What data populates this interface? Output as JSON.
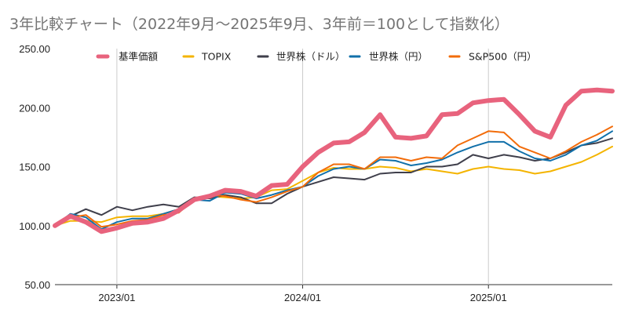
{
  "chart_data": {
    "type": "line",
    "title": "3年比較チャート（2022年9月～2025年9月、3年前＝100として指数化）",
    "xlabel": "",
    "ylabel": "",
    "ylim": [
      50,
      250
    ],
    "y_ticks": [
      "50.00",
      "100.00",
      "150.00",
      "200.00",
      "250.00"
    ],
    "x_ticks": [
      {
        "label": "2023/01",
        "x": "2023-01"
      },
      {
        "label": "2024/01",
        "x": "2024-01"
      },
      {
        "label": "2025/01",
        "x": "2025-01"
      }
    ],
    "x": [
      "2022-09",
      "2022-10",
      "2022-11",
      "2022-12",
      "2023-01",
      "2023-02",
      "2023-03",
      "2023-04",
      "2023-05",
      "2023-06",
      "2023-07",
      "2023-08",
      "2023-09",
      "2023-10",
      "2023-11",
      "2023-12",
      "2024-01",
      "2024-02",
      "2024-03",
      "2024-04",
      "2024-05",
      "2024-06",
      "2024-07",
      "2024-08",
      "2024-09",
      "2024-10",
      "2024-11",
      "2024-12",
      "2025-01",
      "2025-02",
      "2025-03",
      "2025-04",
      "2025-05",
      "2025-06",
      "2025-07",
      "2025-08",
      "2025-09"
    ],
    "grid": "vertical at year ticks",
    "legend": "top",
    "series": [
      {
        "name": "基準価額",
        "color": "#e8637d",
        "width": 6,
        "values": [
          100,
          108,
          103,
          95,
          98,
          102,
          103,
          106,
          113,
          122,
          125,
          130,
          129,
          125,
          134,
          135,
          150,
          162,
          170,
          171,
          179,
          194,
          175,
          174,
          176,
          194,
          195,
          204,
          206,
          207,
          194,
          180,
          175,
          202,
          214,
          215,
          214
        ]
      },
      {
        "name": "TOPIX",
        "color": "#f4b400",
        "width": 2,
        "values": [
          100,
          104,
          104,
          103,
          107,
          108,
          108,
          110,
          114,
          121,
          125,
          124,
          123,
          124,
          130,
          131,
          138,
          145,
          149,
          148,
          148,
          150,
          149,
          146,
          148,
          146,
          144,
          148,
          150,
          148,
          147,
          144,
          146,
          150,
          154,
          160,
          167
        ]
      },
      {
        "name": "世界株（ドル）",
        "color": "#3f3f4b",
        "width": 2,
        "values": [
          100,
          108,
          114,
          109,
          116,
          113,
          116,
          118,
          116,
          124,
          123,
          126,
          124,
          119,
          119,
          127,
          133,
          137,
          141,
          140,
          139,
          144,
          145,
          145,
          150,
          150,
          152,
          160,
          157,
          160,
          158,
          155,
          157,
          162,
          168,
          170,
          174
        ]
      },
      {
        "name": "世界株（円）",
        "color": "#1170aa",
        "width": 2,
        "values": [
          100,
          110,
          107,
          97,
          103,
          106,
          106,
          110,
          114,
          122,
          121,
          128,
          127,
          123,
          126,
          130,
          133,
          142,
          148,
          150,
          148,
          156,
          155,
          151,
          153,
          156,
          162,
          167,
          171,
          171,
          163,
          157,
          155,
          160,
          168,
          172,
          180
        ]
      },
      {
        "name": "S&P500（円）",
        "color": "#f26c0a",
        "width": 2,
        "values": [
          100,
          107,
          109,
          99,
          101,
          104,
          105,
          109,
          111,
          122,
          126,
          125,
          122,
          120,
          124,
          129,
          133,
          145,
          152,
          152,
          148,
          158,
          158,
          155,
          158,
          157,
          168,
          174,
          180,
          179,
          167,
          162,
          157,
          163,
          171,
          177,
          184
        ]
      }
    ]
  }
}
